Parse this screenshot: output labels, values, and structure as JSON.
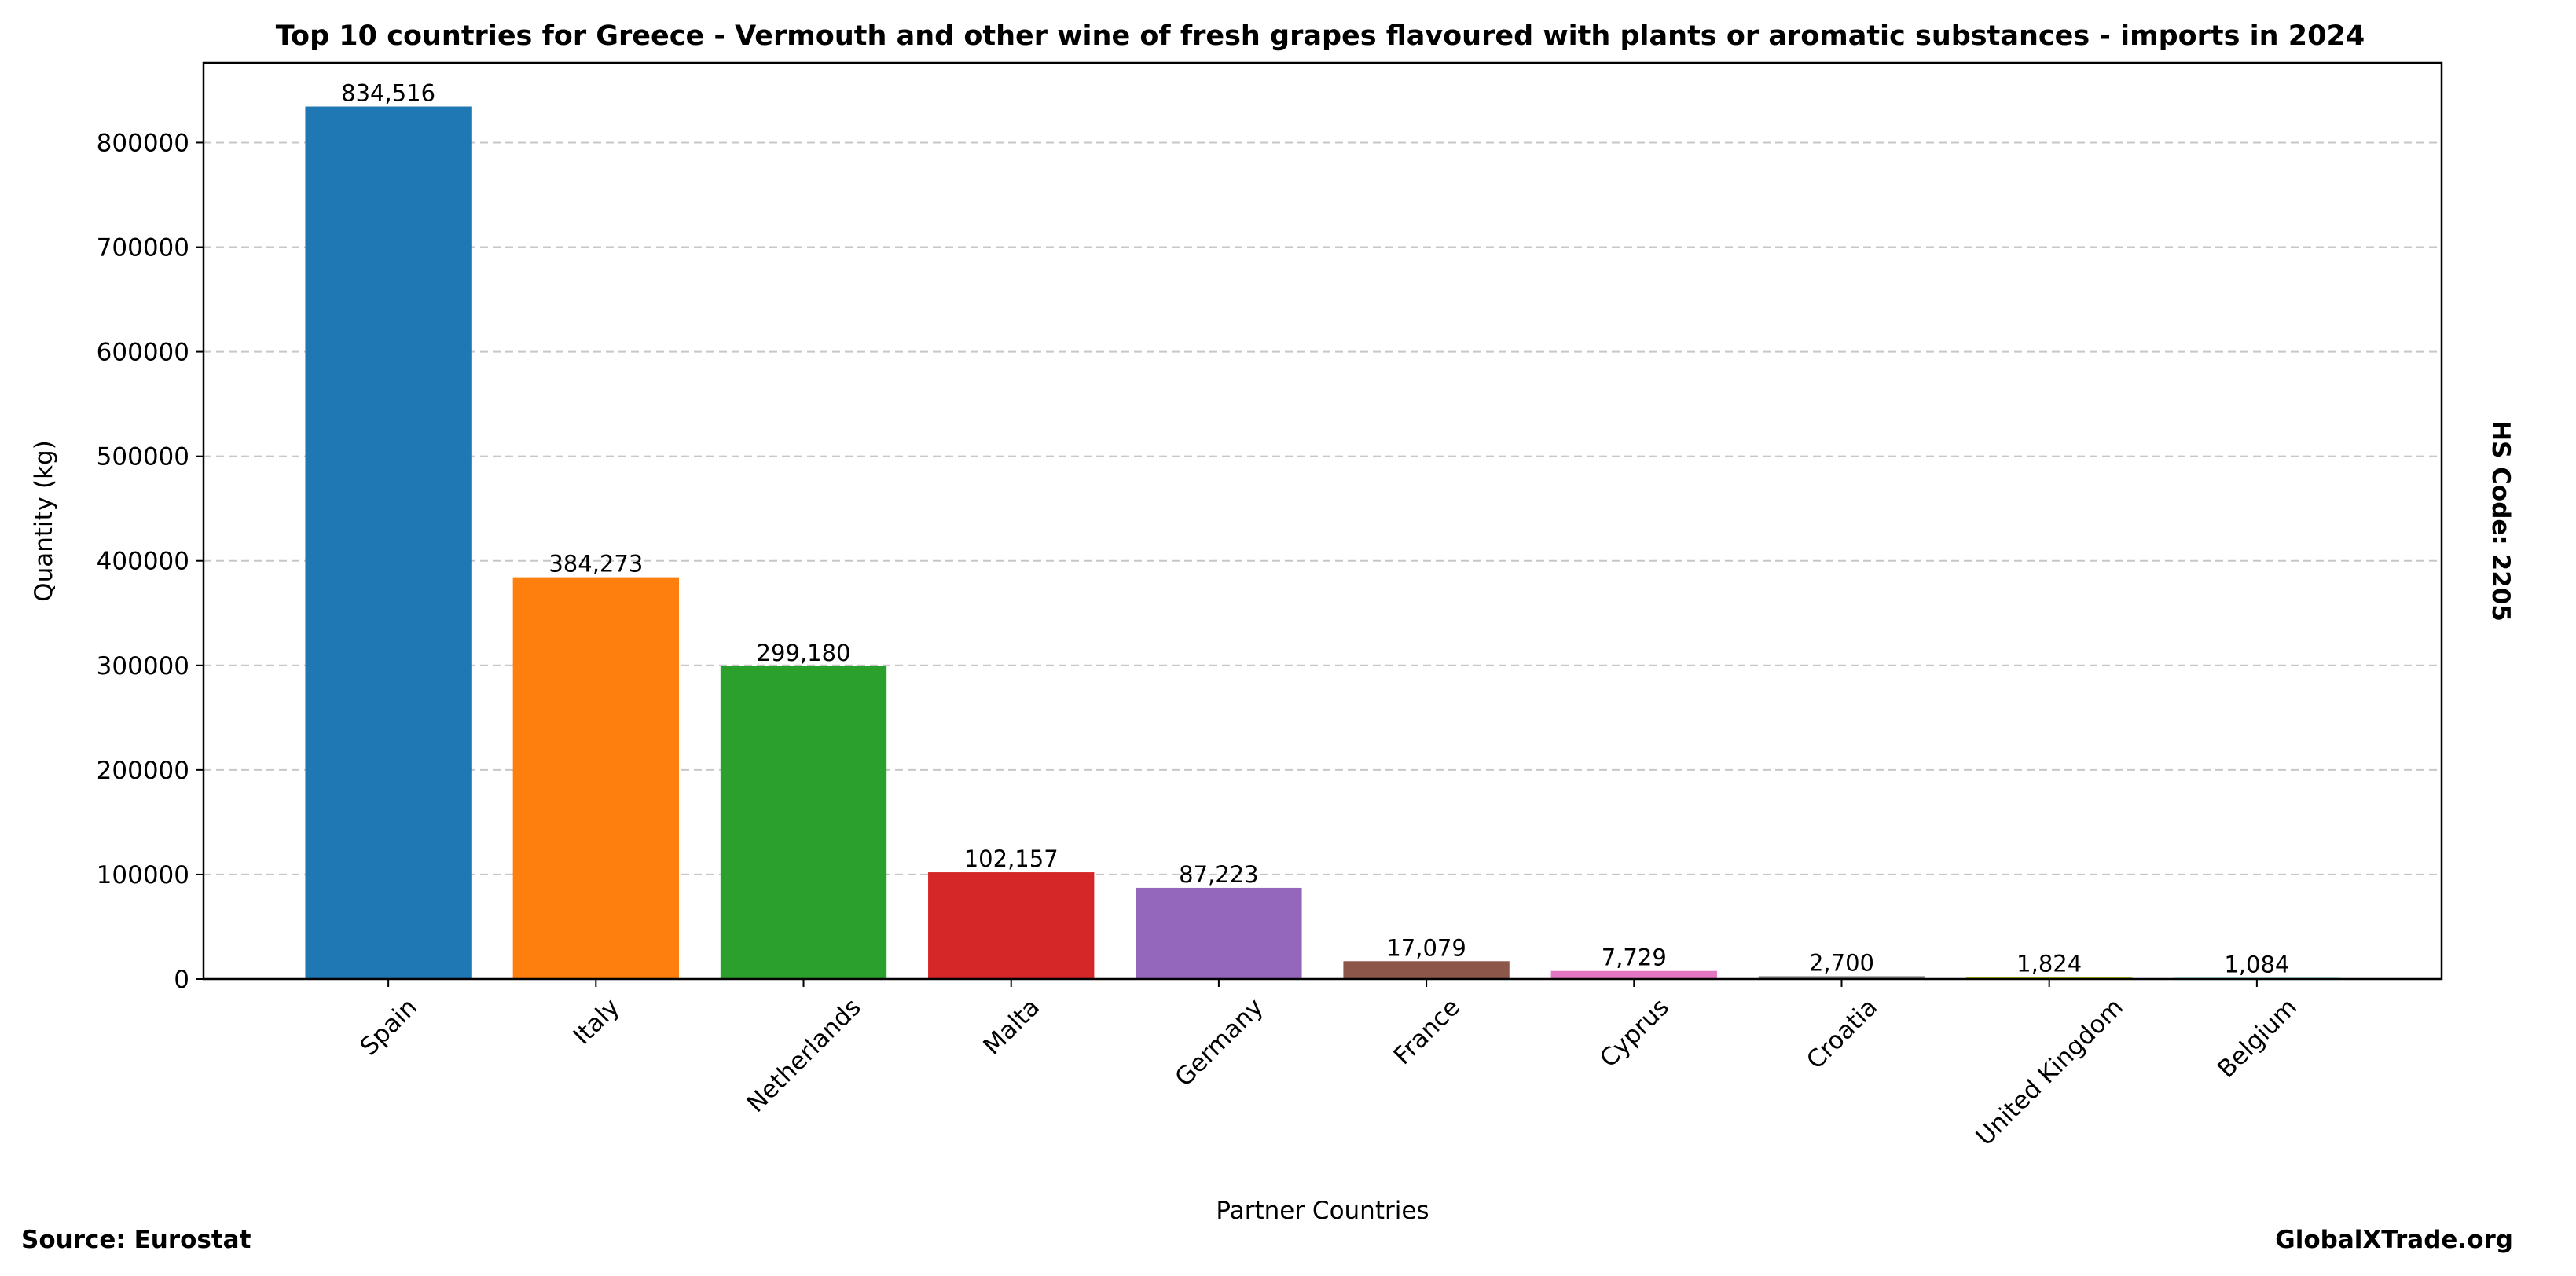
{
  "chart_data": {
    "type": "bar",
    "title": "Top 10 countries for Greece - Vermouth and other wine of fresh grapes flavoured with plants or aromatic substances - imports in 2024",
    "xlabel": "Partner Countries",
    "ylabel": "Quantity (kg)",
    "categories": [
      "Spain",
      "Italy",
      "Netherlands",
      "Malta",
      "Germany",
      "France",
      "Cyprus",
      "Croatia",
      "United Kingdom",
      "Belgium"
    ],
    "values": [
      834516,
      384273,
      299180,
      102157,
      87223,
      17079,
      7729,
      2700,
      1824,
      1084
    ],
    "value_labels": [
      "834,516",
      "384,273",
      "299,180",
      "102,157",
      "87,223",
      "17,079",
      "7,729",
      "2,700",
      "1,824",
      "1,084"
    ],
    "colors": [
      "#1f77b4",
      "#ff7f0e",
      "#2ca02c",
      "#d62728",
      "#9467bd",
      "#8c564b",
      "#e377c2",
      "#7f7f7f",
      "#bcbd22",
      "#17becf"
    ],
    "ylim": [
      0,
      876242
    ],
    "yticks": [
      0,
      100000,
      200000,
      300000,
      400000,
      500000,
      600000,
      700000,
      800000
    ],
    "ytick_labels": [
      "0",
      "100000",
      "200000",
      "300000",
      "400000",
      "500000",
      "600000",
      "700000",
      "800000"
    ],
    "grid": "y-dashed",
    "legend": "none"
  },
  "annotations": {
    "side_label": "HS Code: 2205",
    "source": "Source: Eurostat",
    "brand": "GlobalXTrade.org"
  }
}
